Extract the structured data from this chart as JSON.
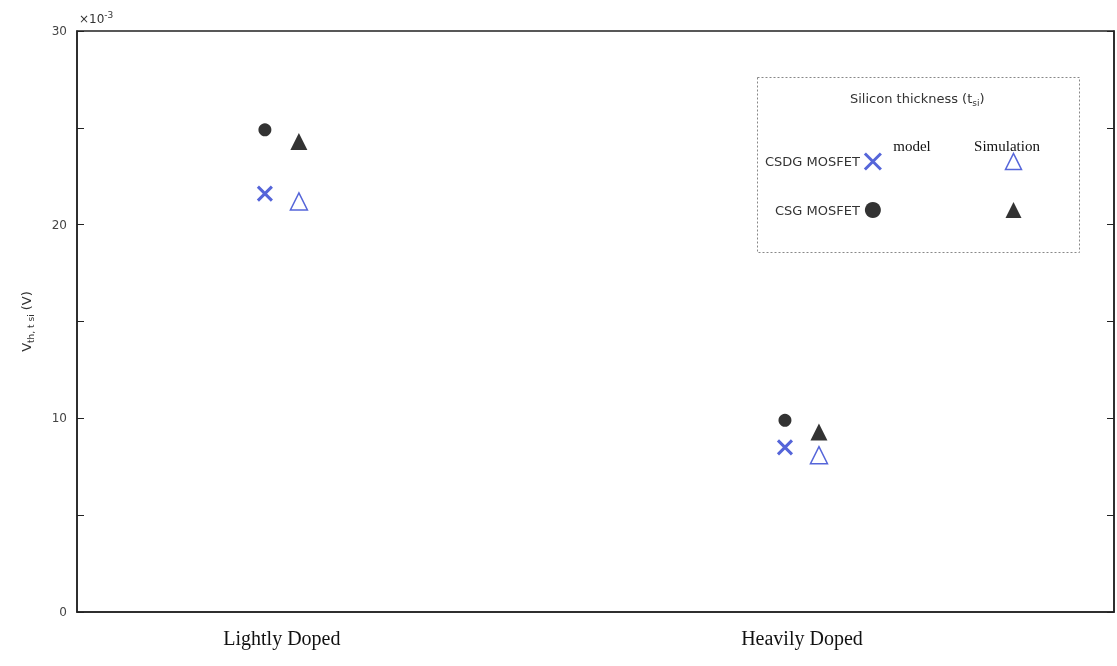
{
  "chart_data": {
    "type": "scatter",
    "ylabel": "V$_{th, t si}$ (V)",
    "legend_title": "Silicon thickness (t$_{si}$)",
    "annotations": [
      "model",
      "Simulation",
      "×10$^{-3}$"
    ],
    "categories": [
      "Lightly Doped",
      "Heavily Doped"
    ],
    "series": [
      {
        "name": "CSDG MOSFET",
        "color": "#2b3fd0",
        "marker": "cross",
        "values": [
          21.6,
          8.5
        ]
      },
      {
        "color": "#2b3fd0",
        "marker": "triangle",
        "values": [
          21.2,
          8.1
        ]
      },
      {
        "name": "CSG MOSFET",
        "color": "#000000",
        "marker": "circle",
        "values": [
          24.9,
          9.9
        ]
      },
      {
        "color": "#000000",
        "marker": "triangle",
        "values": [
          24.3,
          9.3
        ]
      }
    ],
    "ylim": [
      0,
      30
    ],
    "yticks": [
      0,
      {
        "value": 5,
        "label": null
      },
      10,
      {
        "value": 15,
        "label": null
      },
      20,
      {
        "value": 25,
        "label": null
      },
      30
    ],
    "grid": false,
    "legend": "top right"
  }
}
